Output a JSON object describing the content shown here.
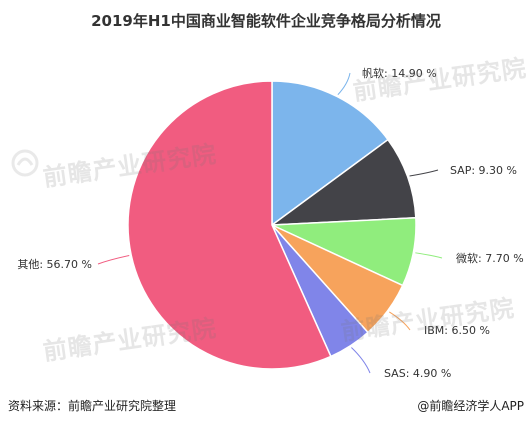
{
  "chart_data": {
    "type": "pie",
    "title": "2019年H1中国商业智能软件企业竞争格局分析情况",
    "slices": [
      {
        "label": "帆软",
        "value": 14.9,
        "value_label": "14.90 %",
        "color": "#7cb5ec"
      },
      {
        "label": "SAP",
        "value": 9.3,
        "value_label": "9.30 %",
        "color": "#434348"
      },
      {
        "label": "微软",
        "value": 7.7,
        "value_label": "7.70 %",
        "color": "#90ed7d"
      },
      {
        "label": "IBM",
        "value": 6.5,
        "value_label": "6.50 %",
        "color": "#f7a35c"
      },
      {
        "label": "SAS",
        "value": 4.9,
        "value_label": "4.90 %",
        "color": "#8085e9"
      },
      {
        "label": "其他",
        "value": 56.7,
        "value_label": "56.70 %",
        "color": "#f15c80"
      }
    ],
    "start_angle": "12 o'clock",
    "direction": "clockwise"
  },
  "footer": {
    "source": "资料来源：前瞻产业研究院整理",
    "credit": "@前瞻经济学人APP"
  },
  "watermark": {
    "text": "前瞻产业研究院",
    "icon": "qianzhan-logo-icon"
  }
}
